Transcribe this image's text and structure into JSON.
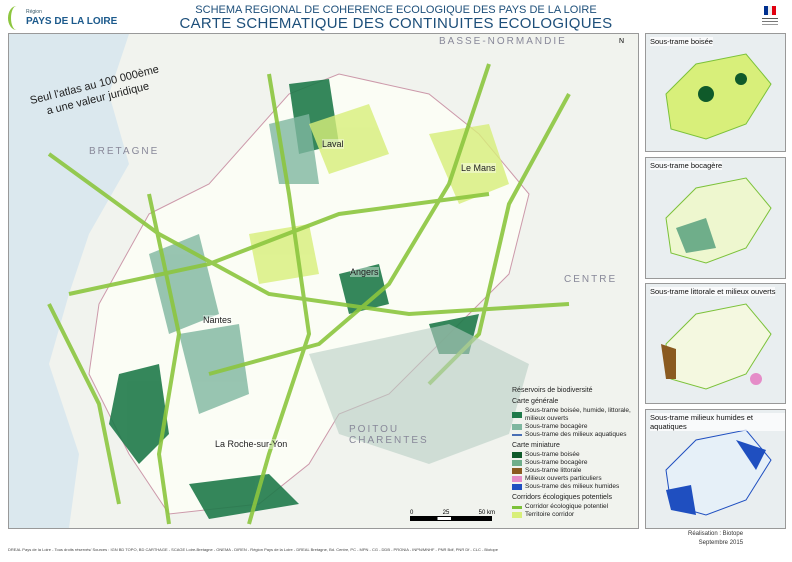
{
  "header": {
    "logo_small": "Région",
    "logo_name": "PAYS DE LA LOIRE",
    "title_line1": "SCHEMA REGIONAL DE COHERENCE ECOLOGIQUE DES PAYS DE LA LOIRE",
    "title_line2": "CARTE SCHEMATIQUE DES CONTINUITES ECOLOGIQUES",
    "gov_logo": "Préfet de la région"
  },
  "map": {
    "regions": [
      "BASSE-NORMANDIE",
      "BRETAGNE",
      "CENTRE",
      "POITOU CHARENTES"
    ],
    "cities": [
      "Laval",
      "Le Mans",
      "Angers",
      "Nantes",
      "La Roche-sur-Yon"
    ],
    "note": [
      "Seul l'atlas au 100 000ème",
      "a une valeur juridique"
    ],
    "north": "N",
    "scale": [
      "0",
      "25",
      "50 km"
    ],
    "colors": {
      "sea": "#dbe8ee",
      "forest": "#1f7a4a",
      "corridor": "#9fd23c",
      "territory": "#d8ef7a",
      "bocage": "#7fb7a0"
    }
  },
  "legend": {
    "title": "Réservoirs de biodiversité",
    "general_title": "Carte générale",
    "general": [
      {
        "label": "Sous-trame boisée, humide, littorale, milieux ouverts",
        "color": "#1f7a4a"
      },
      {
        "label": "Sous-trame bocagère",
        "color": "#7fb7a0"
      },
      {
        "label": "Sous-trame des milieux aquatiques",
        "color": "#4a6fb5"
      }
    ],
    "mini_title": "Carte miniature",
    "mini": [
      {
        "label": "Sous-trame boisée",
        "color": "#0f5a2a"
      },
      {
        "label": "Sous-trame bocagère",
        "color": "#6fae8a"
      },
      {
        "label": "Sous-trame littorale",
        "color": "#8a5a20"
      },
      {
        "label": "Milieux ouverts particuliers",
        "color": "#e58cc8"
      },
      {
        "label": "Sous-trame des milieux humides",
        "color": "#1f4fc0"
      }
    ],
    "corridor_title": "Corridors écologiques potentiels",
    "corridors": [
      {
        "label": "Corridor écologique potentiel",
        "color": "#7cc23a"
      },
      {
        "label": "Territoire corridor",
        "color": "#d8ef7a"
      }
    ]
  },
  "minis": [
    {
      "label": "Sous-trame boisée"
    },
    {
      "label": "Sous-trame bocagère"
    },
    {
      "label": "Sous-trame littorale et milieux ouverts"
    },
    {
      "label": "Sous-trame milieux humides et aquatiques"
    }
  ],
  "footer": {
    "sources": "DREAL Pays de la Loire - Tous droits réservés/ Sources : IGN BD TOPO, BD CARTHAGE - SCAGE Loire-Bretagne - ONEMA - DIREN - Région Pays de la Loire - DREAL Bretagne, Bd. Centre, PC - MPN - CG - DDB - PRONIA - INPN/MNHF - PNR Bdf, PNR Df - CLC - Biotope",
    "credit": "Réalisation : Biotope",
    "date": "Septembre 2015"
  }
}
